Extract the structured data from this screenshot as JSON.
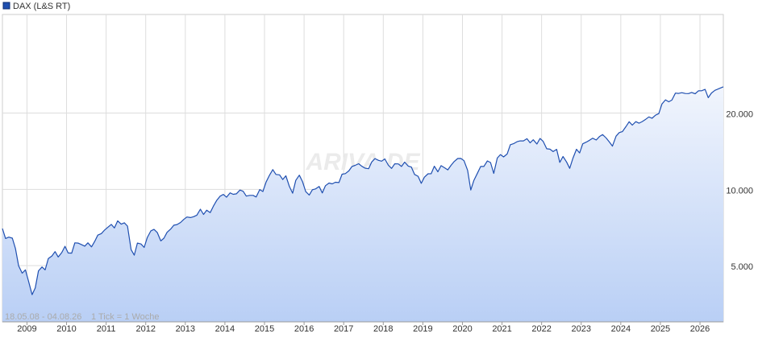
{
  "chart_data": {
    "type": "line",
    "log_y": true,
    "grid": true,
    "watermark": "ARIVA.DE",
    "period": "18.05.08 - 04.08.26",
    "tick_note": "1 Tick = 1 Woche",
    "xlim": [
      2008.38,
      2026.59
    ],
    "xticks": [
      2009,
      2010,
      2011,
      2012,
      2013,
      2014,
      2015,
      2016,
      2017,
      2018,
      2019,
      2020,
      2021,
      2022,
      2023,
      2024,
      2025,
      2026
    ],
    "ylim": [
      3000,
      49000
    ],
    "yticks": [
      {
        "value": 5000,
        "label": "5.000"
      },
      {
        "value": 10000,
        "label": "10.000"
      },
      {
        "value": 20000,
        "label": "20.000"
      }
    ],
    "x": [
      2008.38,
      2008.46,
      2008.54,
      2008.63,
      2008.71,
      2008.79,
      2008.88,
      2008.96,
      2009.04,
      2009.13,
      2009.21,
      2009.29,
      2009.38,
      2009.46,
      2009.54,
      2009.63,
      2009.71,
      2009.79,
      2009.88,
      2009.96,
      2010.04,
      2010.13,
      2010.21,
      2010.29,
      2010.38,
      2010.46,
      2010.54,
      2010.63,
      2010.71,
      2010.79,
      2010.88,
      2010.96,
      2011.04,
      2011.13,
      2011.21,
      2011.29,
      2011.38,
      2011.46,
      2011.54,
      2011.63,
      2011.71,
      2011.79,
      2011.88,
      2011.96,
      2012.04,
      2012.13,
      2012.21,
      2012.29,
      2012.38,
      2012.46,
      2012.54,
      2012.63,
      2012.71,
      2012.79,
      2012.88,
      2012.96,
      2013.04,
      2013.13,
      2013.21,
      2013.29,
      2013.38,
      2013.46,
      2013.54,
      2013.63,
      2013.71,
      2013.79,
      2013.88,
      2013.96,
      2014.04,
      2014.13,
      2014.21,
      2014.29,
      2014.38,
      2014.46,
      2014.54,
      2014.63,
      2014.71,
      2014.79,
      2014.88,
      2014.96,
      2015.04,
      2015.13,
      2015.21,
      2015.29,
      2015.38,
      2015.46,
      2015.54,
      2015.63,
      2015.71,
      2015.79,
      2015.88,
      2015.96,
      2016.04,
      2016.13,
      2016.21,
      2016.29,
      2016.38,
      2016.46,
      2016.54,
      2016.63,
      2016.71,
      2016.79,
      2016.88,
      2016.96,
      2017.04,
      2017.13,
      2017.21,
      2017.29,
      2017.38,
      2017.46,
      2017.54,
      2017.63,
      2017.71,
      2017.79,
      2017.88,
      2017.96,
      2018.04,
      2018.13,
      2018.21,
      2018.29,
      2018.38,
      2018.46,
      2018.54,
      2018.63,
      2018.71,
      2018.79,
      2018.88,
      2018.96,
      2019.04,
      2019.13,
      2019.21,
      2019.29,
      2019.38,
      2019.46,
      2019.54,
      2019.63,
      2019.71,
      2019.79,
      2019.88,
      2019.96,
      2020.04,
      2020.13,
      2020.21,
      2020.29,
      2020.38,
      2020.46,
      2020.54,
      2020.63,
      2020.71,
      2020.79,
      2020.88,
      2020.96,
      2021.04,
      2021.13,
      2021.21,
      2021.29,
      2021.38,
      2021.46,
      2021.54,
      2021.63,
      2021.71,
      2021.79,
      2021.88,
      2021.96,
      2022.04,
      2022.13,
      2022.21,
      2022.29,
      2022.38,
      2022.46,
      2022.54,
      2022.63,
      2022.71,
      2022.79,
      2022.88,
      2022.96,
      2023.04,
      2023.13,
      2023.21,
      2023.29,
      2023.38,
      2023.46,
      2023.54,
      2023.63,
      2023.71,
      2023.79,
      2023.88,
      2023.96,
      2024.04,
      2024.13,
      2024.21,
      2024.29,
      2024.38,
      2024.46,
      2024.54,
      2024.63,
      2024.71,
      2024.79,
      2024.88,
      2024.96,
      2025.04,
      2025.13,
      2025.21,
      2025.29,
      2025.38,
      2025.46,
      2025.54,
      2025.63,
      2025.71,
      2025.79,
      2025.88,
      2025.96,
      2026.04,
      2026.13,
      2026.21,
      2026.29,
      2026.38,
      2026.46,
      2026.54,
      2026.59
    ],
    "series": [
      {
        "name": "DAX (L&S RT)",
        "color": "#1f4fb0",
        "values": [
          7000,
          6400,
          6480,
          6420,
          5830,
          4990,
          4670,
          4810,
          4340,
          3840,
          4080,
          4770,
          4940,
          4810,
          5330,
          5460,
          5680,
          5410,
          5630,
          5960,
          5610,
          5600,
          6150,
          6140,
          6050,
          5970,
          6150,
          5930,
          6230,
          6600,
          6690,
          6910,
          7080,
          7270,
          7040,
          7510,
          7290,
          7380,
          7160,
          5780,
          5500,
          6140,
          6090,
          5900,
          6460,
          6860,
          6950,
          6760,
          6260,
          6420,
          6770,
          6970,
          7220,
          7260,
          7400,
          7610,
          7780,
          7740,
          7800,
          7910,
          8350,
          7960,
          8280,
          8100,
          8590,
          9030,
          9400,
          9550,
          9310,
          9690,
          9560,
          9600,
          9940,
          9830,
          9410,
          9470,
          9470,
          9330,
          9980,
          9810,
          10690,
          11400,
          11970,
          11450,
          11410,
          10940,
          11310,
          10260,
          9660,
          10850,
          11380,
          10740,
          9800,
          9500,
          9970,
          10040,
          10260,
          9680,
          10340,
          10590,
          10510,
          10670,
          10640,
          11480,
          11540,
          11830,
          12310,
          12440,
          12620,
          12330,
          12120,
          12060,
          12830,
          13230,
          13020,
          12920,
          13190,
          12440,
          12100,
          12610,
          12600,
          12310,
          12810,
          12360,
          12250,
          11450,
          11260,
          10560,
          11170,
          11520,
          11530,
          12340,
          11730,
          12400,
          12190,
          11940,
          12430,
          12870,
          13240,
          13250,
          12980,
          11890,
          9940,
          10860,
          11590,
          12310,
          12310,
          12950,
          12760,
          11560,
          13290,
          13720,
          13430,
          13790,
          15010,
          15140,
          15420,
          15530,
          15540,
          15840,
          15260,
          15690,
          15100,
          15880,
          15470,
          14460,
          14410,
          14100,
          14390,
          12780,
          13480,
          12830,
          12110,
          13250,
          14400,
          13920,
          15130,
          15370,
          15630,
          15920,
          15660,
          16150,
          16450,
          15950,
          15390,
          14810,
          16220,
          16750,
          16900,
          17680,
          18490,
          17930,
          18500,
          18240,
          18510,
          18910,
          19320,
          19080,
          19630,
          19910,
          21730,
          22550,
          22160,
          22500,
          23990,
          23910,
          24070,
          23900,
          23880,
          24130,
          23840,
          24490,
          24500,
          24800,
          23000,
          24000,
          24600,
          24900,
          25200,
          25400
        ]
      }
    ]
  }
}
